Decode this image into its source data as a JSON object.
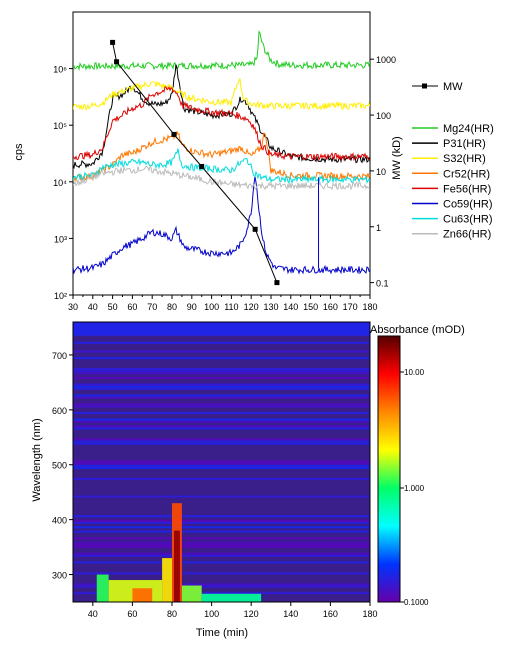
{
  "chart_data": [
    {
      "type": "line",
      "ylabel": "cps",
      "y2label": "MW (kD)",
      "xlim": [
        30,
        180
      ],
      "ylim": [
        100,
        10000000
      ],
      "yscale": "log",
      "y2lim": [
        0.06,
        7000
      ],
      "y2scale": "log",
      "x_ticks": [
        "30",
        "40",
        "50",
        "60",
        "70",
        "80",
        "90",
        "100",
        "110",
        "120",
        "130",
        "140",
        "150",
        "160",
        "170",
        "180"
      ],
      "y_ticks": [
        {
          "v": 100,
          "t": "10²"
        },
        {
          "v": 1000,
          "t": "10³"
        },
        {
          "v": 10000,
          "t": "10⁴"
        },
        {
          "v": 100000,
          "t": "10⁵"
        },
        {
          "v": 1000000,
          "t": "10⁶"
        }
      ],
      "y2_ticks": [
        {
          "v": 0.1,
          "t": "0.1"
        },
        {
          "v": 1,
          "t": "1"
        },
        {
          "v": 10,
          "t": "10"
        },
        {
          "v": 100,
          "t": "100"
        },
        {
          "v": 1000,
          "t": "1000"
        }
      ],
      "mw_legend": "MW",
      "mw_series": {
        "name": "MW",
        "x": [
          50,
          52,
          81,
          95,
          122,
          133
        ],
        "y": [
          2000,
          900,
          45,
          12,
          0.9,
          0.1
        ]
      },
      "series": [
        {
          "name": "Mg24(HR)",
          "color": "#22cc22",
          "base": 1100000,
          "x": [
            30,
            120,
            123,
            124,
            126,
            128,
            130,
            134,
            140,
            180
          ],
          "y": [
            1100000,
            1150000,
            1500000,
            4500000,
            2500000,
            1800000,
            1400000,
            1200000,
            1150000,
            1150000
          ]
        },
        {
          "name": "P31(HR)",
          "color": "#000000",
          "base": 22000,
          "x": [
            30,
            40,
            45,
            50,
            55,
            60,
            65,
            68,
            72,
            77,
            80,
            82,
            84,
            86,
            90,
            100,
            110,
            115,
            118,
            121,
            125,
            130,
            140,
            150,
            160,
            170,
            180
          ],
          "y": [
            20000,
            21000,
            35000,
            300000,
            350000,
            500000,
            300000,
            250000,
            230000,
            250000,
            350000,
            1200000,
            500000,
            200000,
            180000,
            150000,
            160000,
            300000,
            250000,
            150000,
            80000,
            40000,
            28000,
            26000,
            25000,
            25000,
            25000
          ]
        },
        {
          "name": "S32(HR)",
          "color": "#ffee00",
          "base": 210000,
          "x": [
            30,
            40,
            45,
            50,
            55,
            60,
            65,
            70,
            75,
            80,
            85,
            90,
            100,
            110,
            114,
            116,
            118,
            122,
            130,
            180
          ],
          "y": [
            210000,
            220000,
            250000,
            350000,
            400000,
            450000,
            500000,
            550000,
            500000,
            450000,
            350000,
            300000,
            260000,
            250000,
            700000,
            300000,
            260000,
            230000,
            220000,
            220000
          ]
        },
        {
          "name": "Cr52(HR)",
          "color": "#ff7700",
          "base": 12500,
          "x": [
            30,
            40,
            45,
            50,
            55,
            60,
            65,
            70,
            75,
            80,
            83,
            85,
            90,
            100,
            110,
            115,
            120,
            125,
            127,
            130,
            140,
            180
          ],
          "y": [
            12000,
            12500,
            16000,
            20000,
            30000,
            32000,
            40000,
            50000,
            55000,
            60000,
            70000,
            45000,
            35000,
            30000,
            35000,
            40000,
            28000,
            40000,
            80000,
            16000,
            13000,
            12500
          ]
        },
        {
          "name": "Fe56(HR)",
          "color": "#dd0000",
          "base": 28000,
          "x": [
            30,
            40,
            45,
            50,
            55,
            60,
            65,
            70,
            75,
            80,
            83,
            85,
            90,
            100,
            110,
            118,
            121,
            125,
            130,
            140,
            180
          ],
          "y": [
            28000,
            30000,
            40000,
            120000,
            150000,
            200000,
            230000,
            350000,
            400000,
            450000,
            350000,
            230000,
            200000,
            170000,
            160000,
            130000,
            100000,
            45000,
            30000,
            28000,
            28000
          ]
        },
        {
          "name": "Co59(HR)",
          "color": "#0000cc",
          "base": 300,
          "x": [
            30,
            40,
            45,
            50,
            55,
            60,
            65,
            70,
            75,
            80,
            82,
            84,
            86,
            90,
            100,
            110,
            115,
            118,
            120,
            122,
            124,
            126,
            128,
            132,
            140,
            150,
            180
          ],
          "y": [
            280,
            300,
            350,
            500,
            700,
            800,
            1000,
            1300,
            1200,
            1000,
            1400,
            1000,
            700,
            650,
            550,
            550,
            800,
            1500,
            3000,
            15000,
            3000,
            900,
            500,
            300,
            280,
            280,
            280
          ]
        },
        {
          "name": "Cu63(HR)",
          "color": "#00dddd",
          "base": 12000,
          "x": [
            30,
            40,
            45,
            50,
            55,
            60,
            65,
            70,
            75,
            80,
            83,
            85,
            90,
            100,
            110,
            115,
            118,
            121,
            125,
            130,
            180
          ],
          "y": [
            12000,
            13000,
            18000,
            20000,
            21000,
            22000,
            22000,
            20000,
            20000,
            22000,
            35000,
            20000,
            18000,
            17000,
            16000,
            22000,
            25000,
            15000,
            12000,
            11000,
            11000
          ]
        },
        {
          "name": "Zn66(HR)",
          "color": "#bbbbbb",
          "base": 9000,
          "x": [
            30,
            40,
            45,
            50,
            55,
            60,
            65,
            70,
            75,
            80,
            85,
            90,
            100,
            110,
            120,
            130,
            140,
            180
          ],
          "y": [
            9000,
            12000,
            14000,
            15000,
            16000,
            16000,
            17000,
            16000,
            15000,
            14000,
            13000,
            12000,
            10000,
            9000,
            8500,
            8500,
            8500,
            8500
          ]
        }
      ]
    },
    {
      "type": "heatmap",
      "xlabel": "Time (min)",
      "ylabel": "Wavelength (nm)",
      "xlim": [
        30,
        180
      ],
      "ylim": [
        250,
        760
      ],
      "x_ticks": [
        "40",
        "60",
        "80",
        "100",
        "120",
        "140",
        "160",
        "180"
      ],
      "y_ticks": [
        "300",
        "400",
        "500",
        "600",
        "700"
      ],
      "colorbar_title": "Absorbance (mOD)",
      "colorbar_scale": "log",
      "colorbar_range": [
        0.1,
        30
      ],
      "colorbar_ticks": [
        "10.00",
        "1.000",
        "0.1000"
      ],
      "colorbar_colors": [
        "#6600aa",
        "#0033ff",
        "#00ffff",
        "#00ff66",
        "#ffff00",
        "#ff8800",
        "#ff0000",
        "#550000"
      ],
      "features": [
        {
          "t0": 42,
          "t1": 48,
          "w0": 250,
          "w1": 300,
          "level": 0.45
        },
        {
          "t0": 48,
          "t1": 75,
          "w0": 250,
          "w1": 290,
          "level": 0.55
        },
        {
          "t0": 60,
          "t1": 70,
          "w0": 250,
          "w1": 275,
          "level": 0.75
        },
        {
          "t0": 75,
          "t1": 80,
          "w0": 250,
          "w1": 330,
          "level": 0.6
        },
        {
          "t0": 80,
          "t1": 85,
          "w0": 250,
          "w1": 430,
          "level": 0.78
        },
        {
          "t0": 81,
          "t1": 84,
          "w0": 250,
          "w1": 380,
          "level": 0.95
        },
        {
          "t0": 85,
          "t1": 95,
          "w0": 250,
          "w1": 280,
          "level": 0.5
        },
        {
          "t0": 95,
          "t1": 125,
          "w0": 250,
          "w1": 265,
          "level": 0.38
        }
      ]
    }
  ]
}
